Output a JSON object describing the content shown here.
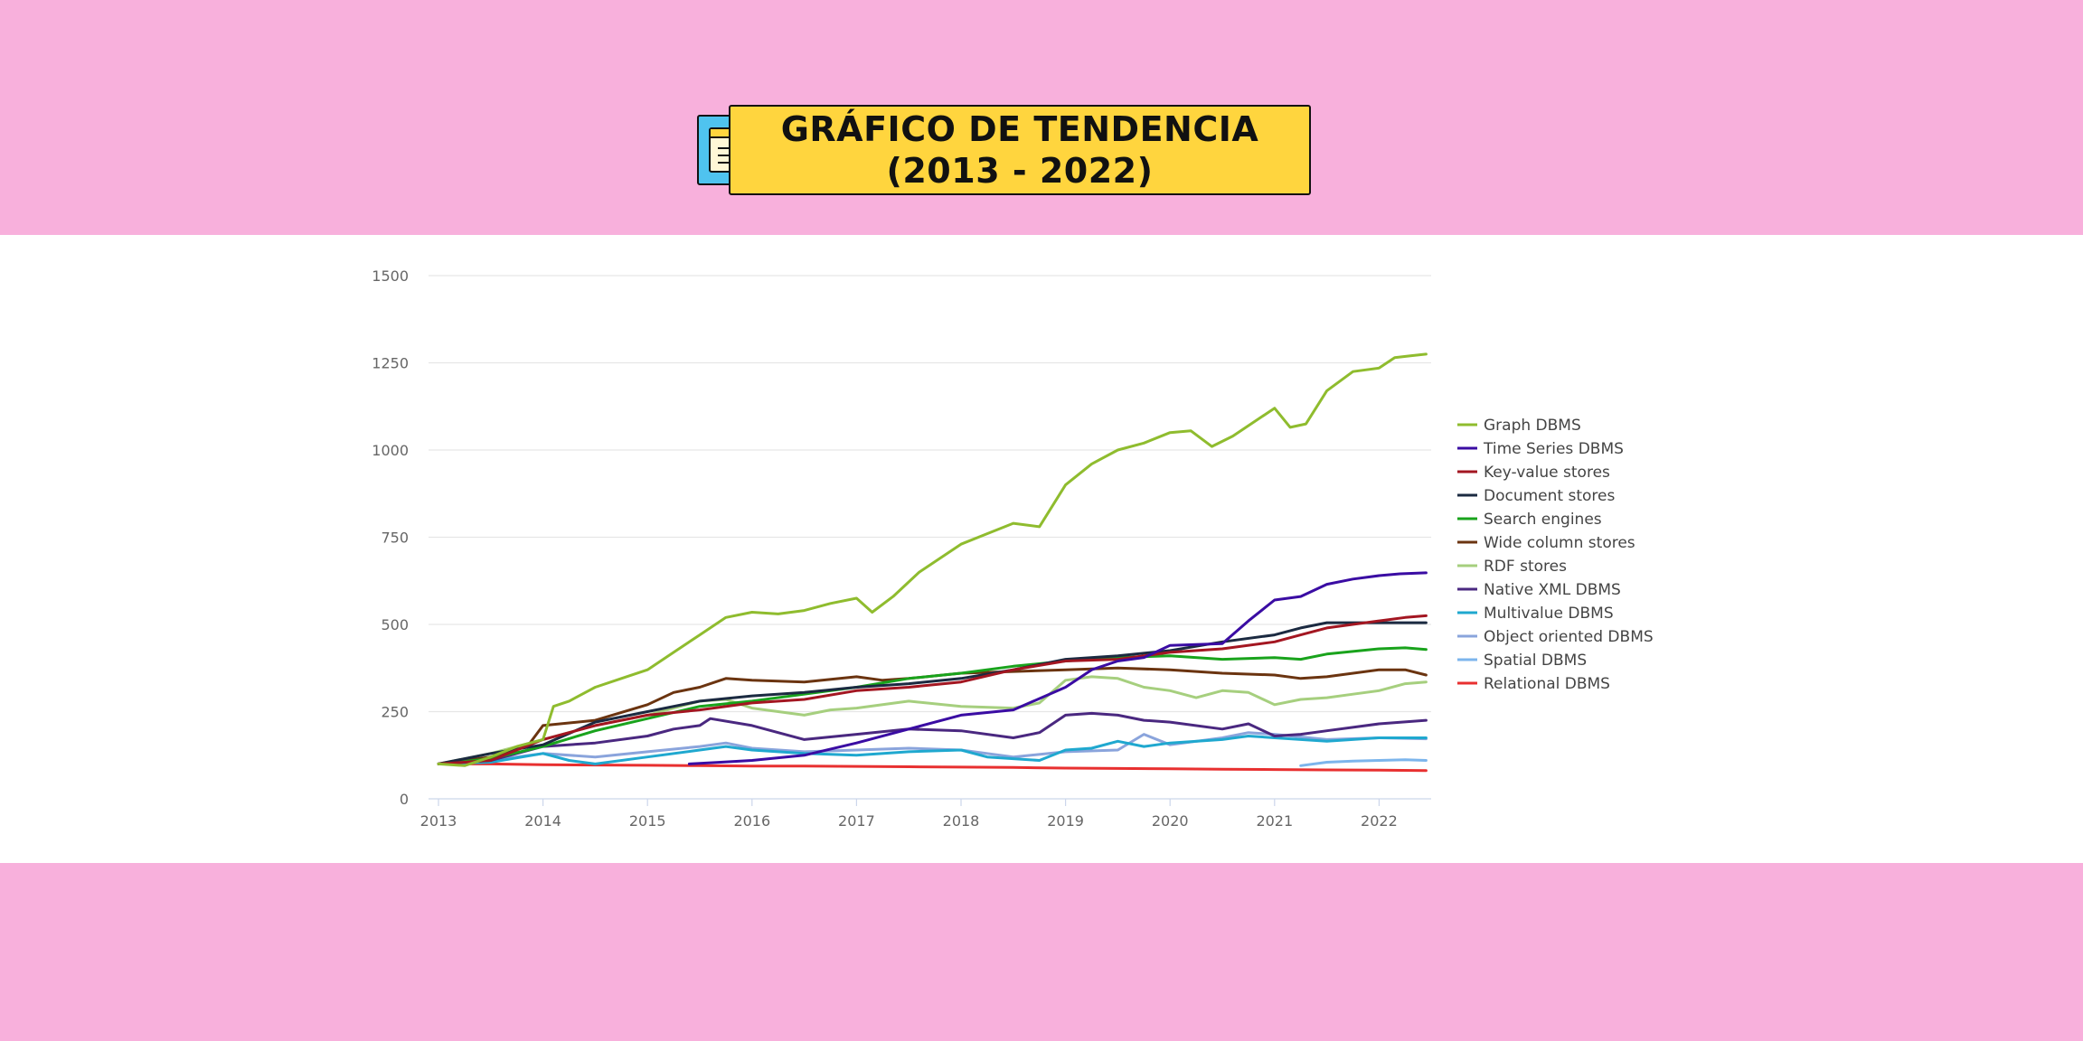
{
  "title": {
    "line1": "GRÁFICO DE TENDENCIA",
    "line2": "(2013 - 2022)"
  },
  "icon": "notepad-icon",
  "colors": {
    "background": "#f8b0dc",
    "panel": "#ffffff",
    "title_box": "#ffd53e",
    "icon_box": "#4fc3ef"
  },
  "chart_data": {
    "type": "line",
    "title": "",
    "xlabel": "",
    "ylabel": "",
    "xlim": [
      2013,
      2022.5
    ],
    "ylim": [
      0,
      1500
    ],
    "x_ticks": [
      2013,
      2014,
      2015,
      2016,
      2017,
      2018,
      2019,
      2020,
      2021,
      2022
    ],
    "y_ticks": [
      0,
      250,
      500,
      750,
      1000,
      1250,
      1500
    ],
    "grid": "horizontal",
    "legend_position": "right",
    "series": [
      {
        "name": "Graph DBMS",
        "color": "#8fbc2e",
        "points": [
          [
            2013,
            100
          ],
          [
            2013.25,
            95
          ],
          [
            2013.5,
            120
          ],
          [
            2013.75,
            150
          ],
          [
            2014,
            170
          ],
          [
            2014.1,
            265
          ],
          [
            2014.25,
            280
          ],
          [
            2014.5,
            320
          ],
          [
            2014.75,
            345
          ],
          [
            2015,
            370
          ],
          [
            2015.25,
            420
          ],
          [
            2015.5,
            470
          ],
          [
            2015.75,
            520
          ],
          [
            2016,
            535
          ],
          [
            2016.25,
            530
          ],
          [
            2016.5,
            540
          ],
          [
            2016.75,
            560
          ],
          [
            2017,
            575
          ],
          [
            2017.15,
            535
          ],
          [
            2017.35,
            580
          ],
          [
            2017.6,
            650
          ],
          [
            2018,
            730
          ],
          [
            2018.25,
            760
          ],
          [
            2018.5,
            790
          ],
          [
            2018.75,
            780
          ],
          [
            2019,
            900
          ],
          [
            2019.25,
            960
          ],
          [
            2019.5,
            1000
          ],
          [
            2019.75,
            1020
          ],
          [
            2020,
            1050
          ],
          [
            2020.2,
            1055
          ],
          [
            2020.4,
            1010
          ],
          [
            2020.6,
            1040
          ],
          [
            2020.85,
            1090
          ],
          [
            2021,
            1120
          ],
          [
            2021.15,
            1065
          ],
          [
            2021.3,
            1075
          ],
          [
            2021.5,
            1170
          ],
          [
            2021.75,
            1225
          ],
          [
            2022,
            1235
          ],
          [
            2022.15,
            1265
          ],
          [
            2022.3,
            1270
          ],
          [
            2022.45,
            1275
          ]
        ]
      },
      {
        "name": "Time Series DBMS",
        "color": "#3a0ca3",
        "points": [
          [
            2015.4,
            100
          ],
          [
            2015.7,
            105
          ],
          [
            2016,
            110
          ],
          [
            2016.5,
            125
          ],
          [
            2017,
            160
          ],
          [
            2017.5,
            200
          ],
          [
            2018,
            240
          ],
          [
            2018.5,
            255
          ],
          [
            2019,
            320
          ],
          [
            2019.25,
            370
          ],
          [
            2019.5,
            395
          ],
          [
            2019.75,
            405
          ],
          [
            2020,
            440
          ],
          [
            2020.5,
            445
          ],
          [
            2020.75,
            510
          ],
          [
            2021,
            570
          ],
          [
            2021.25,
            580
          ],
          [
            2021.5,
            615
          ],
          [
            2021.75,
            630
          ],
          [
            2022,
            640
          ],
          [
            2022.2,
            645
          ],
          [
            2022.45,
            648
          ]
        ]
      },
      {
        "name": "Key-value stores",
        "color": "#a31621",
        "points": [
          [
            2013,
            100
          ],
          [
            2013.5,
            110
          ],
          [
            2014,
            170
          ],
          [
            2014.5,
            210
          ],
          [
            2015,
            240
          ],
          [
            2015.5,
            255
          ],
          [
            2016,
            275
          ],
          [
            2016.5,
            285
          ],
          [
            2017,
            310
          ],
          [
            2017.5,
            320
          ],
          [
            2018,
            335
          ],
          [
            2018.5,
            370
          ],
          [
            2019,
            395
          ],
          [
            2019.5,
            400
          ],
          [
            2020,
            420
          ],
          [
            2020.5,
            430
          ],
          [
            2021,
            450
          ],
          [
            2021.25,
            470
          ],
          [
            2021.5,
            490
          ],
          [
            2022,
            510
          ],
          [
            2022.25,
            520
          ],
          [
            2022.45,
            525
          ]
        ]
      },
      {
        "name": "Document stores",
        "color": "#1b2a41",
        "points": [
          [
            2013,
            100
          ],
          [
            2013.5,
            130
          ],
          [
            2014,
            155
          ],
          [
            2014.5,
            220
          ],
          [
            2015,
            250
          ],
          [
            2015.5,
            280
          ],
          [
            2016,
            295
          ],
          [
            2016.5,
            305
          ],
          [
            2017,
            320
          ],
          [
            2017.5,
            330
          ],
          [
            2018,
            345
          ],
          [
            2018.5,
            370
          ],
          [
            2019,
            400
          ],
          [
            2019.5,
            410
          ],
          [
            2020,
            425
          ],
          [
            2020.5,
            450
          ],
          [
            2021,
            470
          ],
          [
            2021.25,
            490
          ],
          [
            2021.5,
            505
          ],
          [
            2022,
            505
          ],
          [
            2022.45,
            505
          ]
        ]
      },
      {
        "name": "Search engines",
        "color": "#19a31c",
        "points": [
          [
            2013,
            100
          ],
          [
            2013.5,
            115
          ],
          [
            2014,
            150
          ],
          [
            2014.5,
            195
          ],
          [
            2015,
            230
          ],
          [
            2015.5,
            265
          ],
          [
            2016,
            280
          ],
          [
            2016.5,
            300
          ],
          [
            2017,
            320
          ],
          [
            2017.5,
            345
          ],
          [
            2018,
            360
          ],
          [
            2018.5,
            380
          ],
          [
            2019,
            395
          ],
          [
            2019.5,
            405
          ],
          [
            2020,
            410
          ],
          [
            2020.5,
            400
          ],
          [
            2021,
            405
          ],
          [
            2021.25,
            400
          ],
          [
            2021.5,
            415
          ],
          [
            2022,
            430
          ],
          [
            2022.25,
            433
          ],
          [
            2022.45,
            428
          ]
        ]
      },
      {
        "name": "Wide column stores",
        "color": "#6b3410",
        "points": [
          [
            2013,
            100
          ],
          [
            2013.5,
            120
          ],
          [
            2013.85,
            150
          ],
          [
            2014,
            210
          ],
          [
            2014.5,
            225
          ],
          [
            2015,
            270
          ],
          [
            2015.25,
            305
          ],
          [
            2015.5,
            320
          ],
          [
            2015.75,
            345
          ],
          [
            2016,
            340
          ],
          [
            2016.5,
            335
          ],
          [
            2017,
            350
          ],
          [
            2017.25,
            340
          ],
          [
            2017.5,
            345
          ],
          [
            2018,
            360
          ],
          [
            2018.5,
            365
          ],
          [
            2019,
            370
          ],
          [
            2019.5,
            375
          ],
          [
            2020,
            370
          ],
          [
            2020.5,
            360
          ],
          [
            2021,
            355
          ],
          [
            2021.25,
            345
          ],
          [
            2021.5,
            350
          ],
          [
            2022,
            370
          ],
          [
            2022.25,
            370
          ],
          [
            2022.45,
            355
          ]
        ]
      },
      {
        "name": "RDF stores",
        "color": "#a6cf7e",
        "points": [
          [
            2013,
            100
          ],
          [
            2013.5,
            130
          ],
          [
            2014,
            170
          ],
          [
            2014.5,
            210
          ],
          [
            2015,
            240
          ],
          [
            2015.5,
            280
          ],
          [
            2015.75,
            285
          ],
          [
            2016,
            260
          ],
          [
            2016.25,
            250
          ],
          [
            2016.5,
            240
          ],
          [
            2016.75,
            255
          ],
          [
            2017,
            260
          ],
          [
            2017.5,
            280
          ],
          [
            2018,
            265
          ],
          [
            2018.5,
            260
          ],
          [
            2018.75,
            275
          ],
          [
            2019,
            340
          ],
          [
            2019.25,
            350
          ],
          [
            2019.5,
            345
          ],
          [
            2019.75,
            320
          ],
          [
            2020,
            310
          ],
          [
            2020.25,
            290
          ],
          [
            2020.5,
            310
          ],
          [
            2020.75,
            305
          ],
          [
            2021,
            270
          ],
          [
            2021.25,
            285
          ],
          [
            2021.5,
            290
          ],
          [
            2021.75,
            300
          ],
          [
            2022,
            310
          ],
          [
            2022.25,
            330
          ],
          [
            2022.45,
            335
          ]
        ]
      },
      {
        "name": "Native XML DBMS",
        "color": "#4a2880",
        "points": [
          [
            2013,
            100
          ],
          [
            2013.5,
            110
          ],
          [
            2014,
            150
          ],
          [
            2014.5,
            160
          ],
          [
            2015,
            180
          ],
          [
            2015.25,
            200
          ],
          [
            2015.5,
            210
          ],
          [
            2015.6,
            230
          ],
          [
            2016,
            210
          ],
          [
            2016.25,
            190
          ],
          [
            2016.5,
            170
          ],
          [
            2017,
            185
          ],
          [
            2017.5,
            200
          ],
          [
            2018,
            195
          ],
          [
            2018.5,
            175
          ],
          [
            2018.75,
            190
          ],
          [
            2019,
            240
          ],
          [
            2019.25,
            245
          ],
          [
            2019.5,
            240
          ],
          [
            2019.75,
            225
          ],
          [
            2020,
            220
          ],
          [
            2020.5,
            200
          ],
          [
            2020.75,
            215
          ],
          [
            2021,
            180
          ],
          [
            2021.25,
            185
          ],
          [
            2021.5,
            195
          ],
          [
            2022,
            215
          ],
          [
            2022.45,
            225
          ]
        ]
      },
      {
        "name": "Multivalue DBMS",
        "color": "#1fa8cf",
        "points": [
          [
            2013,
            100
          ],
          [
            2013.5,
            105
          ],
          [
            2014,
            130
          ],
          [
            2014.25,
            110
          ],
          [
            2014.5,
            100
          ],
          [
            2015,
            120
          ],
          [
            2015.5,
            140
          ],
          [
            2015.75,
            150
          ],
          [
            2016,
            140
          ],
          [
            2016.5,
            130
          ],
          [
            2017,
            125
          ],
          [
            2017.5,
            135
          ],
          [
            2018,
            140
          ],
          [
            2018.25,
            120
          ],
          [
            2018.5,
            115
          ],
          [
            2018.75,
            110
          ],
          [
            2019,
            140
          ],
          [
            2019.25,
            145
          ],
          [
            2019.5,
            165
          ],
          [
            2019.75,
            150
          ],
          [
            2020,
            160
          ],
          [
            2020.5,
            170
          ],
          [
            2020.75,
            180
          ],
          [
            2021,
            175
          ],
          [
            2021.5,
            165
          ],
          [
            2022,
            175
          ],
          [
            2022.45,
            175
          ]
        ]
      },
      {
        "name": "Object oriented DBMS",
        "color": "#8aa4dc",
        "points": [
          [
            2013,
            100
          ],
          [
            2013.5,
            110
          ],
          [
            2014,
            130
          ],
          [
            2014.5,
            120
          ],
          [
            2015,
            135
          ],
          [
            2015.5,
            150
          ],
          [
            2015.75,
            160
          ],
          [
            2016,
            145
          ],
          [
            2016.5,
            135
          ],
          [
            2017,
            140
          ],
          [
            2017.5,
            145
          ],
          [
            2018,
            140
          ],
          [
            2018.5,
            120
          ],
          [
            2019,
            135
          ],
          [
            2019.5,
            140
          ],
          [
            2019.75,
            185
          ],
          [
            2020,
            155
          ],
          [
            2020.5,
            175
          ],
          [
            2020.75,
            190
          ],
          [
            2021,
            185
          ],
          [
            2021.5,
            170
          ],
          [
            2022,
            175
          ],
          [
            2022.45,
            172
          ]
        ]
      },
      {
        "name": "Spatial DBMS",
        "color": "#7cb5ec",
        "points": [
          [
            2021.25,
            95
          ],
          [
            2021.5,
            105
          ],
          [
            2021.75,
            108
          ],
          [
            2022,
            110
          ],
          [
            2022.25,
            112
          ],
          [
            2022.45,
            110
          ]
        ]
      },
      {
        "name": "Relational DBMS",
        "color": "#e83030",
        "points": [
          [
            2013,
            100
          ],
          [
            2013.5,
            100
          ],
          [
            2014,
            98
          ],
          [
            2014.5,
            97
          ],
          [
            2015,
            96
          ],
          [
            2015.5,
            95
          ],
          [
            2016,
            94
          ],
          [
            2016.5,
            94
          ],
          [
            2017,
            93
          ],
          [
            2017.5,
            92
          ],
          [
            2018,
            91
          ],
          [
            2018.5,
            90
          ],
          [
            2019,
            88
          ],
          [
            2019.5,
            87
          ],
          [
            2020,
            86
          ],
          [
            2020.5,
            85
          ],
          [
            2021,
            84
          ],
          [
            2021.5,
            83
          ],
          [
            2022,
            82
          ],
          [
            2022.45,
            81
          ]
        ]
      }
    ]
  }
}
